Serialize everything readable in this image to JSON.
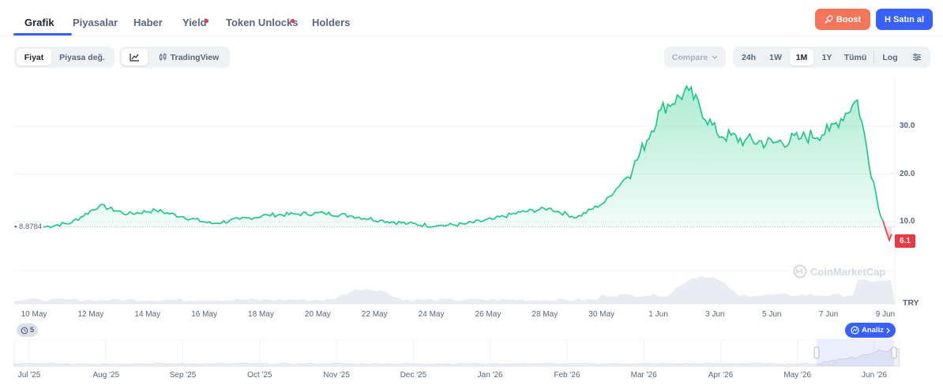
{
  "tabs": [
    {
      "label": "Grafik",
      "active": true
    },
    {
      "label": "Piyasalar"
    },
    {
      "label": "Haber"
    },
    {
      "label": "Yield",
      "dot": true
    },
    {
      "label": "Token Unlocks",
      "dot": true
    },
    {
      "label": "Holders"
    }
  ],
  "actions": {
    "boost_label": "Boost",
    "buy_label": "H Satın al"
  },
  "toolbar": {
    "metric_options": [
      "Fiyat",
      "Piyasa değ."
    ],
    "metric_selected": "Fiyat",
    "tradingview_label": "TradingView",
    "compare_label": "Compare",
    "ranges": [
      "24h",
      "1W",
      "1M",
      "1Y",
      "Tümü"
    ],
    "range_selected": "1M",
    "log_label": "Log"
  },
  "chart_data": {
    "type": "area",
    "title": "",
    "currency": "TRY",
    "start_price_label": "8.8784",
    "current_price_label": "6.1",
    "y_ticks": [
      "30.0",
      "20.0",
      "10.0"
    ],
    "ylim": [
      0,
      45
    ],
    "x_ticks": [
      "10 May",
      "12 May",
      "14 May",
      "16 May",
      "18 May",
      "20 May",
      "22 May",
      "24 May",
      "26 May",
      "28 May",
      "30 May",
      "1 Jun",
      "3 Jun",
      "5 Jun",
      "7 Jun",
      "9 Jun"
    ],
    "series": [
      {
        "x": [
          "10 May",
          "11 May",
          "12 May",
          "13 May",
          "14 May",
          "15 May",
          "16 May",
          "17 May",
          "18 May",
          "19 May",
          "20 May",
          "21 May",
          "22 May",
          "23 May",
          "24 May",
          "25 May",
          "26 May",
          "27 May",
          "28 May",
          "29 May",
          "30 May",
          "31 May",
          "1 Jun",
          "2 Jun",
          "3 Jun",
          "4 Jun",
          "5 Jun",
          "6 Jun",
          "7 Jun",
          "8 Jun",
          "9 Jun"
        ],
        "values": [
          8.9,
          9.8,
          13.4,
          11.6,
          12.4,
          11.0,
          9.6,
          10.5,
          11.4,
          11.6,
          11.8,
          11.2,
          10.3,
          9.6,
          9.1,
          9.5,
          10.5,
          12.0,
          12.8,
          10.9,
          14.1,
          21.0,
          33.5,
          37.5,
          28.5,
          27.0,
          26.5,
          27.5,
          29.0,
          35.5,
          6.1
        ]
      }
    ],
    "grid": true,
    "watermark": "CoinMarketCap",
    "events_count": "5",
    "analysis_label": "Analiz",
    "navigator_ticks": [
      "Jul '25",
      "Aug '25",
      "Sep '25",
      "Oct '25",
      "Nov '25",
      "Dec '25",
      "Jan '26",
      "Feb '26",
      "Mar '26",
      "Apr '26",
      "May '26",
      "Jun '26"
    ]
  }
}
